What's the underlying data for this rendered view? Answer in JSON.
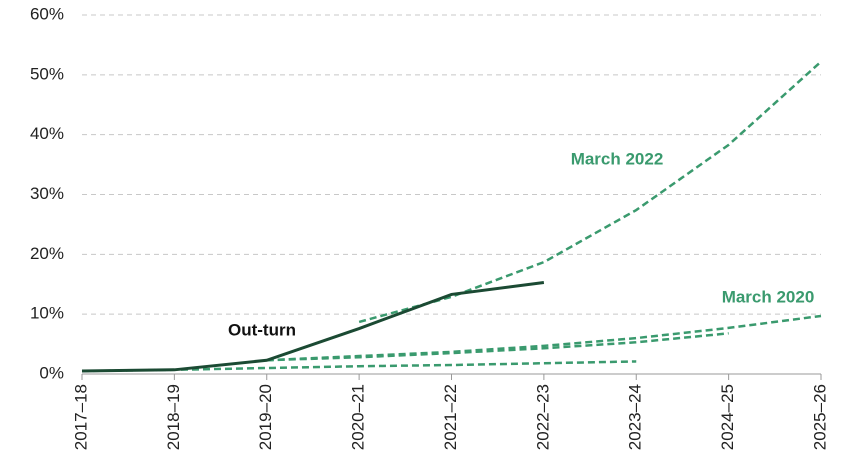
{
  "chart_data": {
    "type": "line",
    "categories": [
      "2017–18",
      "2018–19",
      "2019–20",
      "2020–21",
      "2021–22",
      "2022–23",
      "2023–24",
      "2024–25",
      "2025–26"
    ],
    "series": [
      {
        "name": "Out-turn",
        "color": "#1b4a33",
        "dashed": false,
        "values": [
          0.5,
          0.7,
          2.3,
          7.6,
          13.3,
          15.3,
          null,
          null,
          null
        ]
      },
      {
        "name": "March 2022",
        "color": "#3a9a6e",
        "dashed": true,
        "values": [
          null,
          null,
          null,
          8.7,
          12.9,
          18.7,
          27.4,
          38.3,
          52.2
        ]
      },
      {
        "name": "March 2020",
        "color": "#3a9a6e",
        "dashed": true,
        "values": [
          null,
          null,
          2.3,
          3.0,
          3.7,
          4.7,
          6.0,
          7.7,
          9.7
        ]
      },
      {
        "color": "#3a9a6e",
        "dashed": true,
        "values": [
          null,
          null,
          2.3,
          2.8,
          3.5,
          4.3,
          5.3,
          6.8,
          null
        ]
      },
      {
        "color": "#3a9a6e",
        "dashed": true,
        "values": [
          0.5,
          0.7,
          1.0,
          1.3,
          1.5,
          1.8,
          2.1,
          null,
          null
        ]
      }
    ],
    "ylim": [
      0,
      60
    ],
    "yticks": [
      {
        "value": 0,
        "label": "0%"
      },
      {
        "value": 10,
        "label": "10%"
      },
      {
        "value": 20,
        "label": "20%"
      },
      {
        "value": 30,
        "label": "30%"
      },
      {
        "value": 40,
        "label": "40%"
      },
      {
        "value": 50,
        "label": "50%"
      },
      {
        "value": 60,
        "label": "60%"
      }
    ],
    "grid": true
  }
}
